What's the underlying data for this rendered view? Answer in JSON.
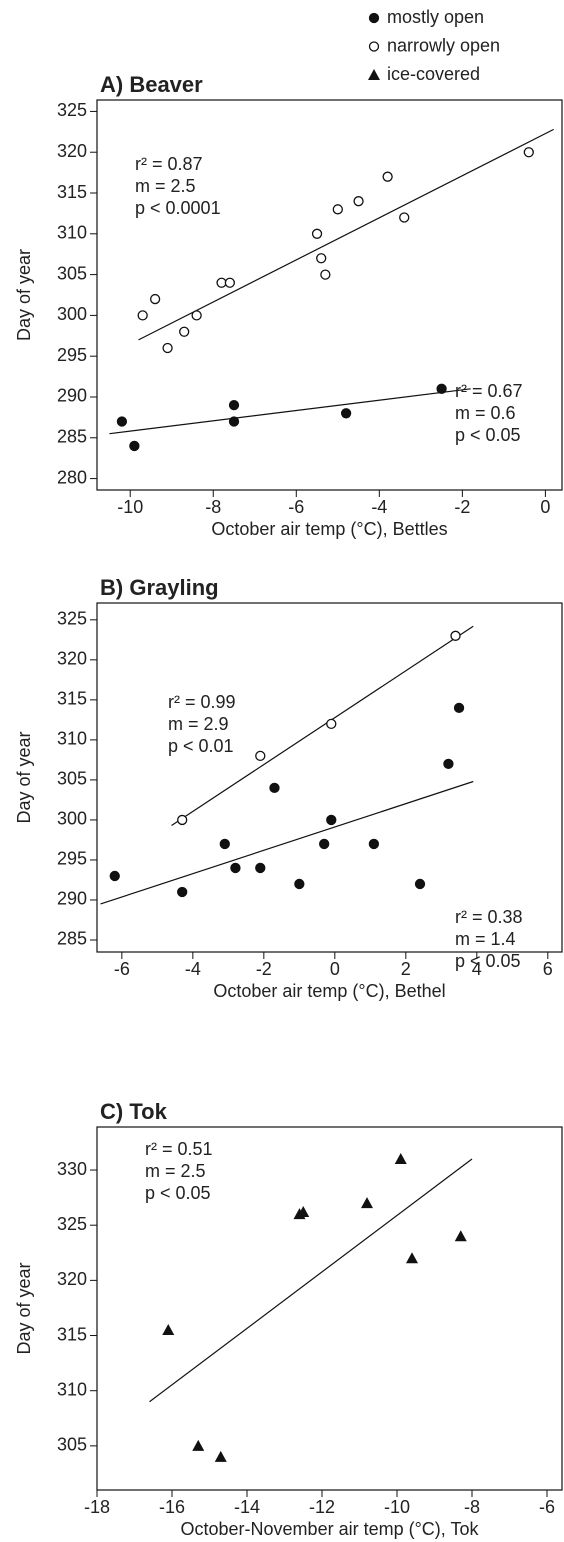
{
  "legend": [
    {
      "name": "mostly open",
      "marker": "filled-circle"
    },
    {
      "name": "narrowly open",
      "marker": "open-circle"
    },
    {
      "name": "ice-covered",
      "marker": "triangle"
    }
  ],
  "chart_data": [
    {
      "type": "scatter",
      "title": "A) Beaver",
      "x_label": "October air temp (°C), Bettles",
      "y_label": "Day of year",
      "xlim": [
        -10.8,
        0.4
      ],
      "ylim": [
        278.6,
        326.4
      ],
      "xticks": [
        -10,
        -8,
        -6,
        -4,
        -2,
        0
      ],
      "yticks": [
        280,
        285,
        290,
        295,
        300,
        305,
        310,
        315,
        320,
        325
      ],
      "series": [
        {
          "marker": "open-circle",
          "x": [
            -9.7,
            -9.4,
            -9.1,
            -8.7,
            -8.4,
            -7.8,
            -7.6,
            -5.5,
            -5.4,
            -5.3,
            -5,
            -4.5,
            -3.8,
            -3.4,
            -0.4
          ],
          "y": [
            300,
            302,
            296,
            298,
            300,
            304,
            304,
            310,
            307,
            305,
            313,
            314,
            317,
            312,
            320
          ],
          "fit": {
            "x": [
              -9.8,
              0.2
            ],
            "y": [
              297,
              322.8
            ]
          },
          "annotation": [
            "r² = 0.87",
            "m = 2.5",
            "p < 0.0001"
          ]
        },
        {
          "marker": "filled-circle",
          "x": [
            -10.2,
            -9.9,
            -7.5,
            -7.5,
            -4.8,
            -2.5
          ],
          "y": [
            287,
            284,
            289,
            287,
            288,
            291
          ],
          "fit": {
            "x": [
              -10.5,
              -1.8
            ],
            "y": [
              285.5,
              291
            ]
          },
          "annotation": [
            "r² = 0.67",
            "m = 0.6",
            "p < 0.05"
          ]
        }
      ]
    },
    {
      "type": "scatter",
      "title": "B) Grayling",
      "x_label": "October air temp (°C), Bethel",
      "y_label": "Day of year",
      "xlim": [
        -6.7,
        6.4
      ],
      "ylim": [
        283.5,
        327.1
      ],
      "xticks": [
        -6,
        -4,
        -2,
        0,
        2,
        4,
        6
      ],
      "yticks": [
        285,
        290,
        295,
        300,
        305,
        310,
        315,
        320,
        325
      ],
      "series": [
        {
          "marker": "open-circle",
          "x": [
            -4.3,
            -2.1,
            -0.1,
            3.4
          ],
          "y": [
            300,
            308,
            312,
            323
          ],
          "fit": {
            "x": [
              -4.6,
              3.9
            ],
            "y": [
              299.3,
              324.2
            ]
          },
          "annotation": [
            "r² = 0.99",
            "m = 2.9",
            "p < 0.01"
          ]
        },
        {
          "marker": "filled-circle",
          "x": [
            -6.2,
            -4.3,
            -3.1,
            -2.8,
            -2.1,
            -1.7,
            -1,
            -0.3,
            -0.1,
            1.1,
            2.4,
            3.2,
            3.5
          ],
          "y": [
            293,
            291,
            297,
            294,
            294,
            304,
            292,
            297,
            300,
            297,
            292,
            307,
            314
          ],
          "fit": {
            "x": [
              -6.6,
              3.9
            ],
            "y": [
              289.5,
              304.8
            ]
          },
          "annotation": [
            "r² = 0.38",
            "m = 1.4",
            "p < 0.05"
          ]
        }
      ]
    },
    {
      "type": "scatter",
      "title": "C) Tok",
      "x_label": "October-November air temp (°C), Tok",
      "y_label": "Day of year",
      "xlim": [
        -18,
        -5.6
      ],
      "ylim": [
        301,
        333.9
      ],
      "xticks": [
        -18,
        -16,
        -14,
        -12,
        -10,
        -8,
        -6
      ],
      "yticks": [
        305,
        310,
        315,
        320,
        325,
        330
      ],
      "series": [
        {
          "marker": "triangle",
          "x": [
            -16.1,
            -15.3,
            -14.7,
            -12.6,
            -12.5,
            -10.8,
            -9.9,
            -9.6,
            -8.3
          ],
          "y": [
            315.5,
            305,
            304,
            326,
            326.2,
            327,
            331,
            322,
            324
          ],
          "fit": {
            "x": [
              -16.6,
              -8
            ],
            "y": [
              309,
              331
            ]
          },
          "annotation": [
            "r² = 0.51",
            "m = 2.5",
            "p < 0.05"
          ]
        }
      ]
    }
  ]
}
